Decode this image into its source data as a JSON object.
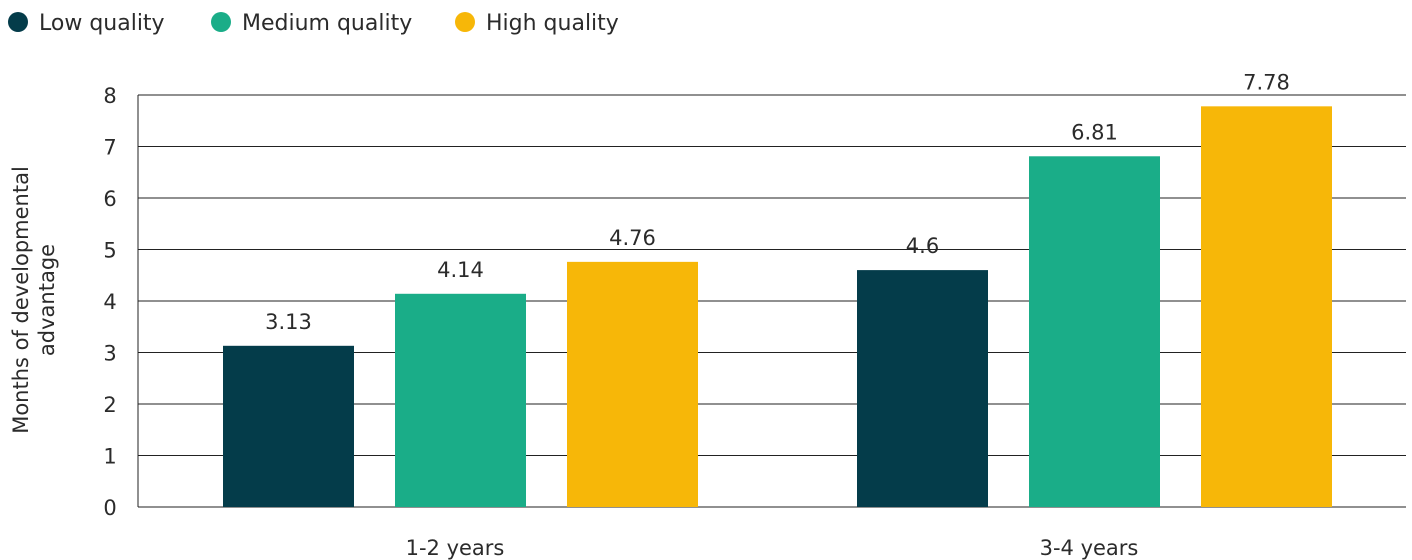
{
  "chart_data": {
    "type": "bar",
    "title": "",
    "xlabel": "",
    "ylabel": [
      "Months of developmental",
      "advantage"
    ],
    "ylim": [
      0,
      8
    ],
    "yticks": [
      0,
      1,
      2,
      3,
      4,
      5,
      6,
      7,
      8
    ],
    "grid": true,
    "legend_position": "top-left",
    "categories": [
      "1-2 years",
      "3-4 years"
    ],
    "series": [
      {
        "name": "Low quality",
        "color": "#043c4a",
        "values": [
          3.13,
          4.6
        ]
      },
      {
        "name": "Medium quality",
        "color": "#1aad88",
        "values": [
          4.14,
          6.81
        ]
      },
      {
        "name": "High quality",
        "color": "#f7b708",
        "values": [
          4.76,
          7.78
        ]
      }
    ]
  }
}
